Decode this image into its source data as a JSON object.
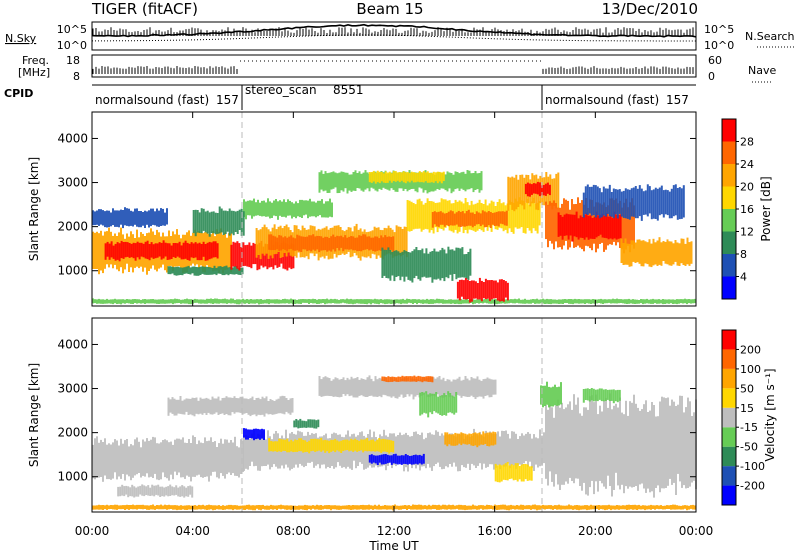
{
  "header": {
    "radar": "TIGER (fitACF)",
    "beam": "Beam 15",
    "date": "13/Dec/2010"
  },
  "noise_panel": {
    "left_label": "N.Sky",
    "right_label": "N.Search",
    "left_ticks": [
      "10^5",
      "10^0"
    ],
    "right_ticks": [
      "10^5",
      "10^0"
    ]
  },
  "freq_panel": {
    "left_label_line1": "Freq.",
    "left_label_line2": "[MHz]",
    "right_label": "Nave",
    "left_ticks": [
      "18",
      "8"
    ],
    "right_ticks": [
      "60",
      "0"
    ]
  },
  "cpid_panel": {
    "label": "CPID",
    "programs": [
      {
        "name": "normalsound (fast)",
        "id": "157",
        "start_hour": 0.0
      },
      {
        "name": "stereo_scan",
        "id": "8551",
        "start_hour": 6.0
      },
      {
        "name": "normalsound (fast)",
        "id": "157",
        "start_hour": 18.0
      }
    ]
  },
  "chart_data": [
    {
      "type": "heatmap",
      "panel": "power",
      "ylabel": "Slant Range [km]",
      "x_range_hours": [
        0,
        24
      ],
      "ylim": [
        200,
        4600
      ],
      "y_ticks": [
        1000,
        2000,
        3000,
        4000
      ],
      "colorbar": {
        "label": "Power [dB]",
        "ticks": [
          4,
          8,
          12,
          16,
          20,
          24,
          28
        ],
        "colors": [
          "#0000ff",
          "#1e50b4",
          "#2e8b57",
          "#66cc55",
          "#ffd700",
          "#ffa500",
          "#ff6600",
          "#ff0000"
        ]
      },
      "bands": [
        {
          "start": 0.0,
          "end": 24.0,
          "lo": 250,
          "hi": 360,
          "color": "#66cc55"
        },
        {
          "start": 0.0,
          "end": 5.5,
          "lo": 1000,
          "hi": 1900,
          "color": "#ffa500"
        },
        {
          "start": 0.5,
          "end": 5.0,
          "lo": 1250,
          "hi": 1650,
          "color": "#ff0000"
        },
        {
          "start": 3.0,
          "end": 6.0,
          "lo": 900,
          "hi": 1100,
          "color": "#2e8b57"
        },
        {
          "start": 5.5,
          "end": 8.0,
          "lo": 1050,
          "hi": 1650,
          "color": "#ff0000"
        },
        {
          "start": 6.5,
          "end": 12.5,
          "lo": 1300,
          "hi": 2000,
          "color": "#ffa500"
        },
        {
          "start": 7.0,
          "end": 12.0,
          "lo": 1450,
          "hi": 1800,
          "color": "#ff6600"
        },
        {
          "start": 6.0,
          "end": 9.5,
          "lo": 2200,
          "hi": 2600,
          "color": "#66cc55"
        },
        {
          "start": 9.0,
          "end": 15.5,
          "lo": 2800,
          "hi": 3250,
          "color": "#66cc55"
        },
        {
          "start": 11.0,
          "end": 14.0,
          "lo": 3000,
          "hi": 3250,
          "color": "#ffd700"
        },
        {
          "start": 12.5,
          "end": 17.8,
          "lo": 1900,
          "hi": 2600,
          "color": "#ffd700"
        },
        {
          "start": 13.5,
          "end": 16.5,
          "lo": 2000,
          "hi": 2350,
          "color": "#ff6600"
        },
        {
          "start": 11.5,
          "end": 15.0,
          "lo": 800,
          "hi": 1500,
          "color": "#2e8b57"
        },
        {
          "start": 14.5,
          "end": 16.5,
          "lo": 320,
          "hi": 800,
          "color": "#ff0000"
        },
        {
          "start": 16.5,
          "end": 18.5,
          "lo": 2400,
          "hi": 3200,
          "color": "#ffa500"
        },
        {
          "start": 17.2,
          "end": 18.2,
          "lo": 2700,
          "hi": 3000,
          "color": "#ff0000"
        },
        {
          "start": 18.0,
          "end": 21.5,
          "lo": 1500,
          "hi": 2600,
          "color": "#ff6600"
        },
        {
          "start": 18.5,
          "end": 21.0,
          "lo": 1700,
          "hi": 2300,
          "color": "#ff0000"
        },
        {
          "start": 21.0,
          "end": 23.8,
          "lo": 1100,
          "hi": 1700,
          "color": "#ffa500"
        },
        {
          "start": 19.5,
          "end": 23.5,
          "lo": 2200,
          "hi": 2900,
          "color": "#1e50b4"
        },
        {
          "start": 0.0,
          "end": 3.0,
          "lo": 2000,
          "hi": 2400,
          "color": "#1e50b4"
        },
        {
          "start": 4.0,
          "end": 6.0,
          "lo": 1800,
          "hi": 2400,
          "color": "#2e8b57"
        }
      ]
    },
    {
      "type": "heatmap",
      "panel": "velocity",
      "xlabel": "Time UT",
      "ylabel": "Slant Range [km]",
      "x_range_hours": [
        0,
        24
      ],
      "x_ticks": [
        "00:00",
        "04:00",
        "08:00",
        "12:00",
        "16:00",
        "20:00",
        "00:00"
      ],
      "ylim": [
        200,
        4600
      ],
      "y_ticks": [
        1000,
        2000,
        3000,
        4000
      ],
      "colorbar": {
        "label": "Velocity [m s⁻¹]",
        "ticks": [
          200,
          100,
          50,
          15,
          -15,
          -50,
          -100,
          -200
        ],
        "colors": [
          "#0000ff",
          "#1e50b4",
          "#2e8b57",
          "#66cc55",
          "#bebebe",
          "#ffd700",
          "#ffa500",
          "#ff6600",
          "#ff0000"
        ]
      },
      "bands": [
        {
          "start": 0.0,
          "end": 24.0,
          "lo": 250,
          "hi": 360,
          "color": "#ffa500"
        },
        {
          "start": 0.0,
          "end": 6.0,
          "lo": 950,
          "hi": 1850,
          "color": "#bebebe"
        },
        {
          "start": 6.0,
          "end": 18.0,
          "lo": 1200,
          "hi": 2000,
          "color": "#bebebe"
        },
        {
          "start": 3.0,
          "end": 8.0,
          "lo": 2400,
          "hi": 2800,
          "color": "#bebebe"
        },
        {
          "start": 9.0,
          "end": 16.0,
          "lo": 2800,
          "hi": 3250,
          "color": "#bebebe"
        },
        {
          "start": 18.0,
          "end": 24.0,
          "lo": 700,
          "hi": 2700,
          "color": "#bebebe"
        },
        {
          "start": 7.0,
          "end": 12.0,
          "lo": 1550,
          "hi": 1850,
          "color": "#ffd700"
        },
        {
          "start": 11.0,
          "end": 13.2,
          "lo": 1280,
          "hi": 1500,
          "color": "#0000ff"
        },
        {
          "start": 6.0,
          "end": 6.8,
          "lo": 1850,
          "hi": 2100,
          "color": "#0000ff"
        },
        {
          "start": 8.0,
          "end": 9.0,
          "lo": 2100,
          "hi": 2300,
          "color": "#2e8b57"
        },
        {
          "start": 13.0,
          "end": 14.5,
          "lo": 2400,
          "hi": 2900,
          "color": "#66cc55"
        },
        {
          "start": 17.8,
          "end": 18.6,
          "lo": 2600,
          "hi": 3100,
          "color": "#66cc55"
        },
        {
          "start": 19.5,
          "end": 21.0,
          "lo": 2700,
          "hi": 3000,
          "color": "#66cc55"
        },
        {
          "start": 11.5,
          "end": 13.5,
          "lo": 3150,
          "hi": 3280,
          "color": "#ff6600"
        },
        {
          "start": 14.0,
          "end": 16.0,
          "lo": 1700,
          "hi": 2000,
          "color": "#ffa500"
        },
        {
          "start": 16.0,
          "end": 17.5,
          "lo": 900,
          "hi": 1300,
          "color": "#ffd700"
        },
        {
          "start": 1.0,
          "end": 4.0,
          "lo": 550,
          "hi": 800,
          "color": "#bebebe"
        }
      ]
    }
  ]
}
